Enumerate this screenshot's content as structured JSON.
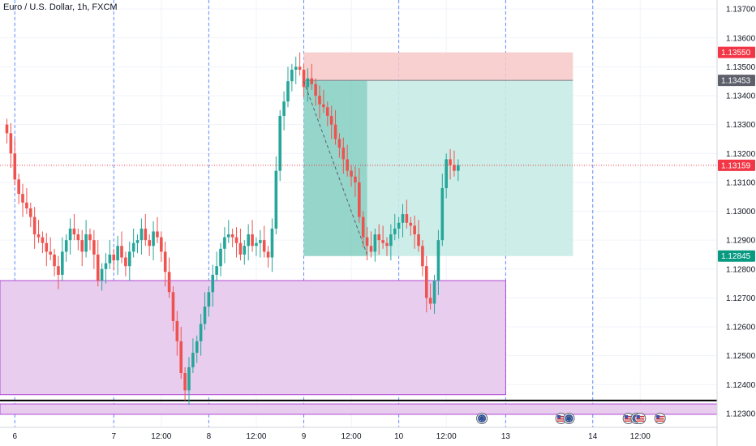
{
  "title": "Euro / U.S. Dollar, 1h, FXCM",
  "chart_data": {
    "type": "candlestick",
    "title": "Euro / U.S. Dollar, 1h, FXCM",
    "ylim": [
      1.1228,
      1.1372
    ],
    "y_ticks": [
      "1.13700",
      "1.13600",
      "1.13500",
      "1.13400",
      "1.13300",
      "1.13200",
      "1.13100",
      "1.13000",
      "1.12900",
      "1.12800",
      "1.12700",
      "1.12600",
      "1.12500",
      "1.12400",
      "1.12300"
    ],
    "x_labels": [
      {
        "label": "6",
        "bar": 2
      },
      {
        "label": "7",
        "bar": 27
      },
      {
        "label": "12:00",
        "bar": 39
      },
      {
        "label": "8",
        "bar": 51
      },
      {
        "label": "12:00",
        "bar": 63
      },
      {
        "label": "9",
        "bar": 75
      },
      {
        "label": "12:00",
        "bar": 87
      },
      {
        "label": "10",
        "bar": 99
      },
      {
        "label": "12:00",
        "bar": 111
      },
      {
        "label": "13",
        "bar": 126
      },
      {
        "label": "14",
        "bar": 148
      },
      {
        "label": "12:00",
        "bar": 160
      }
    ],
    "session_lines_bar": [
      2,
      27,
      51,
      75,
      99,
      126,
      148
    ],
    "closes": [
      1.1327,
      1.132,
      1.1311,
      1.1306,
      1.1303,
      1.1301,
      1.1298,
      1.1292,
      1.1291,
      1.1289,
      1.1286,
      1.1285,
      1.1281,
      1.1278,
      1.1286,
      1.129,
      1.1294,
      1.1292,
      1.129,
      1.1286,
      1.1292,
      1.129,
      1.1285,
      1.1276,
      1.128,
      1.1282,
      1.1285,
      1.1283,
      1.1288,
      1.1284,
      1.1281,
      1.1286,
      1.1289,
      1.129,
      1.1294,
      1.129,
      1.1288,
      1.1293,
      1.1291,
      1.1286,
      1.1279,
      1.1272,
      1.1262,
      1.1255,
      1.1244,
      1.1238,
      1.1246,
      1.1251,
      1.1255,
      1.1261,
      1.1267,
      1.1272,
      1.1278,
      1.1281,
      1.1287,
      1.1291,
      1.1292,
      1.1291,
      1.1289,
      1.1285,
      1.1288,
      1.1292,
      1.1288,
      1.1289,
      1.129,
      1.1286,
      1.1284,
      1.1294,
      1.1314,
      1.1333,
      1.1338,
      1.1345,
      1.1349,
      1.135,
      1.1349,
      1.1343,
      1.1346,
      1.1344,
      1.134,
      1.1337,
      1.1336,
      1.1333,
      1.133,
      1.1325,
      1.1322,
      1.1318,
      1.1314,
      1.1312,
      1.131,
      1.1298,
      1.1291,
      1.1288,
      1.1286,
      1.1292,
      1.129,
      1.1289,
      1.1288,
      1.1292,
      1.1294,
      1.1296,
      1.1299,
      1.1296,
      1.1295,
      1.1292,
      1.1288,
      1.1281,
      1.127,
      1.1268,
      1.1276,
      1.129,
      1.1308,
      1.1318,
      1.1316,
      1.1314,
      1.1316
    ],
    "current_price": 1.13159,
    "price_tags": [
      {
        "price": 1.1355,
        "label": "1.13550",
        "color": "#f23645"
      },
      {
        "price": 1.13453,
        "label": "1.13453",
        "color": "#5d606b"
      },
      {
        "price": 1.13159,
        "label": "1.13159",
        "color": "#f23645"
      },
      {
        "price": 1.12845,
        "label": "1.12845",
        "color": "#089981"
      }
    ],
    "position": {
      "entry": 1.13453,
      "stop": 1.1355,
      "target": 1.12845,
      "start_bar": 75,
      "end_bar": 143,
      "fill_end_bar": 91,
      "stop_fill": "#f8c8c8",
      "target_fill": "#c6ebe6",
      "target_fill_dark": "#8fd1c6"
    },
    "zone": {
      "top": 1.1276,
      "bottom": 1.12365,
      "start_bar": -1,
      "end_bar": 126,
      "fill": "#e8cdef",
      "border": "#b24ad6"
    },
    "bottom_band": {
      "top": 1.12333,
      "bottom": 1.12297,
      "fill": "#e8cdef",
      "border": "#b24ad6"
    },
    "black_line_price": 1.12345,
    "trend_line": {
      "from_bar": 75,
      "from_price": 1.1345,
      "to_bar": 91,
      "to_price": 1.1285
    },
    "colors": {
      "up": "#26a69a",
      "down": "#ef5350",
      "grid": "#f0f3fa",
      "session": "#2962ff"
    },
    "events": [
      {
        "bar": 120,
        "icon": "eu-flag-icon"
      },
      {
        "bar": 140,
        "icon": "us-flag-icon"
      },
      {
        "bar": 142,
        "icon": "eu-flag-icon"
      },
      {
        "bar": 157,
        "icon": "us-flag-icon"
      },
      {
        "bar": 159,
        "icon": "eu-flag-icon"
      },
      {
        "bar": 160,
        "icon": "us-flag-icon"
      },
      {
        "bar": 165,
        "icon": "us-flag-icon"
      }
    ]
  }
}
